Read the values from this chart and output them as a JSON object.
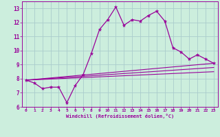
{
  "xlabel": "Windchill (Refroidissement éolien,°C)",
  "bg_color": "#cceedd",
  "grid_color": "#aacccc",
  "line_color": "#990099",
  "x_main": [
    0,
    1,
    2,
    3,
    4,
    5,
    6,
    7,
    8,
    9,
    10,
    11,
    12,
    13,
    14,
    15,
    16,
    17,
    18,
    19,
    20,
    21,
    22,
    23
  ],
  "y_main": [
    7.9,
    7.7,
    7.3,
    7.4,
    7.4,
    6.3,
    7.5,
    8.3,
    9.8,
    11.5,
    12.2,
    13.1,
    11.8,
    12.2,
    12.1,
    12.5,
    12.8,
    12.1,
    10.2,
    9.9,
    9.4,
    9.7,
    9.4,
    9.1
  ],
  "line2_x": [
    0,
    23
  ],
  "line2_y": [
    7.9,
    9.1
  ],
  "line3_x": [
    0,
    23
  ],
  "line3_y": [
    7.9,
    8.8
  ],
  "line4_x": [
    0,
    23
  ],
  "line4_y": [
    7.9,
    8.5
  ],
  "ylim": [
    6.0,
    13.5
  ],
  "xlim": [
    -0.5,
    23.5
  ],
  "yticks": [
    6,
    7,
    8,
    9,
    10,
    11,
    12,
    13
  ],
  "xticks": [
    0,
    1,
    2,
    3,
    4,
    5,
    6,
    7,
    8,
    9,
    10,
    11,
    12,
    13,
    14,
    15,
    16,
    17,
    18,
    19,
    20,
    21,
    22,
    23
  ]
}
